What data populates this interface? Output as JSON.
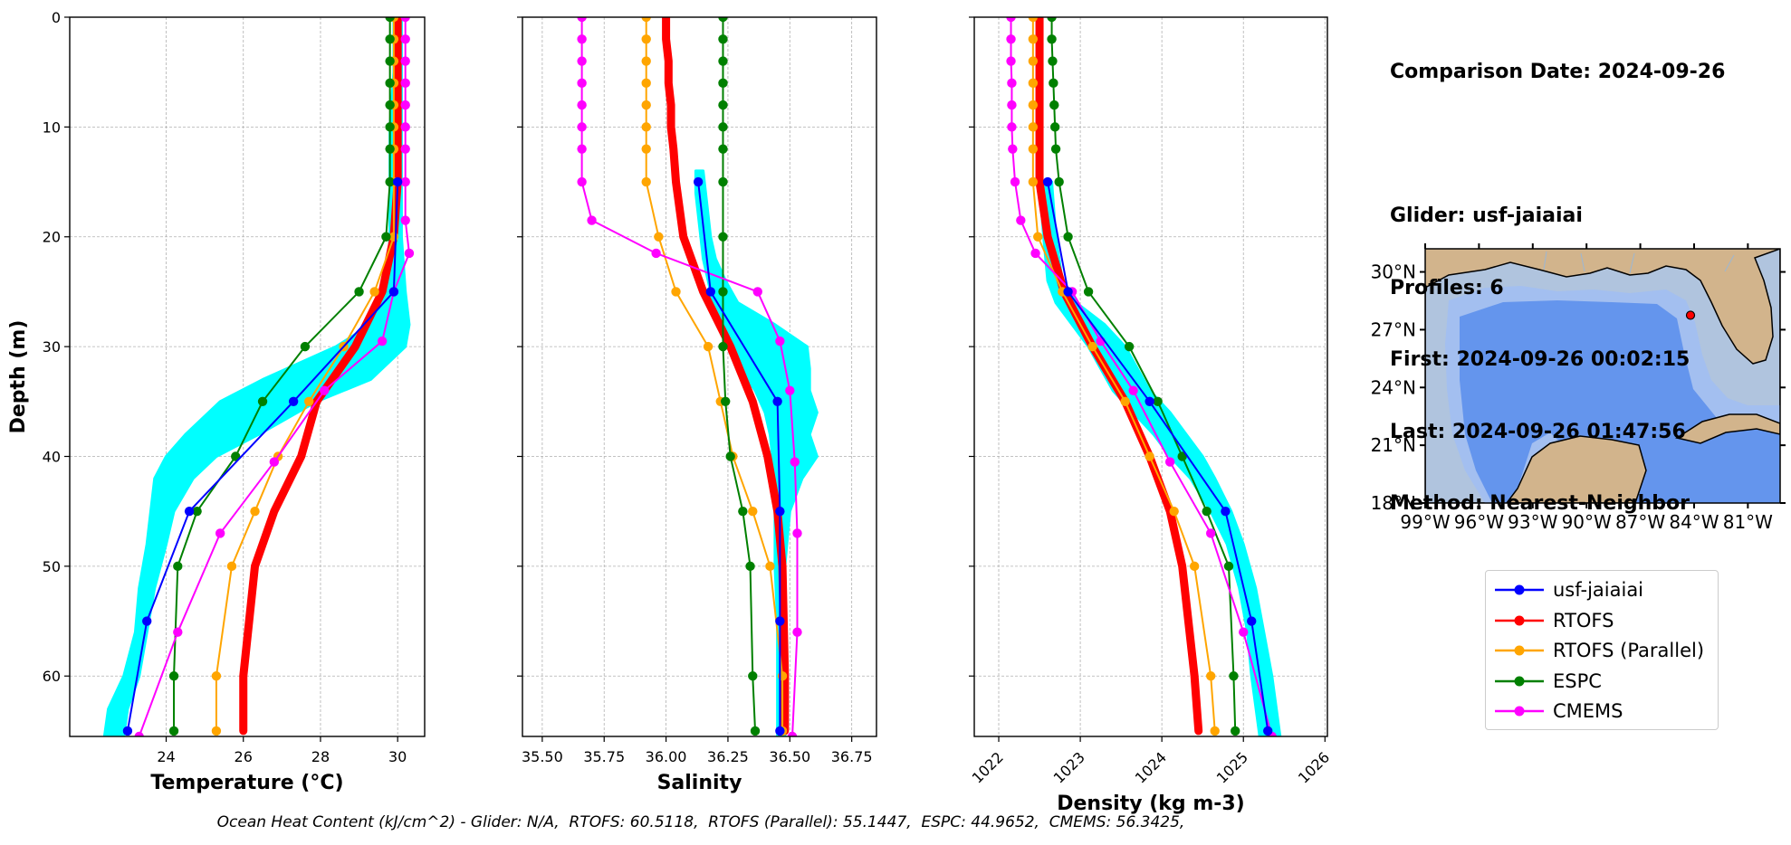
{
  "info": {
    "comparison": "Comparison Date: 2024-09-26",
    "glider": "Glider: usf-jaiaiai",
    "profiles": "Profiles: 6",
    "first": "First: 2024-09-26 00:02:15",
    "last": "Last: 2024-09-26 01:47:56",
    "method": "Method: Nearest-Neighbor"
  },
  "footer": "Ocean Heat Content (kJ/cm^2) - Glider: N/A,  RTOFS: 60.5118,  RTOFS (Parallel): 55.1447,  ESPC: 44.9652,  CMEMS: 56.3425,",
  "colors": {
    "glider": "#0000ff",
    "rtofs": "#ff0000",
    "parallel": "#ffa500",
    "espc": "#008000",
    "cmems": "#ff00ff",
    "raw": "#00ffff",
    "land": "#d2b48c",
    "shelf": "#b0c4de",
    "slope": "#a3bff0",
    "deep": "#6495ed"
  },
  "legend": [
    {
      "key": "glider",
      "label": "usf-jaiaiai"
    },
    {
      "key": "rtofs",
      "label": "RTOFS"
    },
    {
      "key": "parallel",
      "label": "RTOFS (Parallel)"
    },
    {
      "key": "espc",
      "label": "ESPC"
    },
    {
      "key": "cmems",
      "label": "CMEMS"
    }
  ],
  "chart_data": [
    {
      "type": "line",
      "xlabel": "Temperature (°C)",
      "ylabel": "Depth (m)",
      "xlim": [
        21.5,
        30.7
      ],
      "ylim": [
        65.5,
        0
      ],
      "xticks": [
        24,
        26,
        28,
        30
      ],
      "yticks": [
        0,
        10,
        20,
        30,
        40,
        50,
        60
      ],
      "grid": true,
      "series": [
        {
          "name": "usf-jaiaiai",
          "key": "glider",
          "depth": [
            15,
            25,
            35,
            45,
            55,
            65
          ],
          "values": [
            30.0,
            29.9,
            27.3,
            24.6,
            23.5,
            23.0
          ]
        },
        {
          "name": "RTOFS",
          "key": "rtofs",
          "depth": [
            0,
            2,
            4,
            6,
            8,
            10,
            12,
            15,
            20,
            25,
            30,
            35,
            40,
            45,
            50,
            60,
            65
          ],
          "values": [
            30.0,
            30.0,
            30.0,
            30.0,
            30.0,
            30.0,
            30.0,
            30.0,
            29.9,
            29.6,
            28.9,
            27.9,
            27.5,
            26.8,
            26.3,
            26.0,
            26.0
          ]
        },
        {
          "name": "RTOFS (Parallel)",
          "key": "parallel",
          "depth": [
            0,
            2,
            4,
            6,
            8,
            10,
            12,
            15,
            20,
            25,
            30,
            35,
            40,
            45,
            50,
            60,
            65
          ],
          "values": [
            29.9,
            29.9,
            29.9,
            29.9,
            29.9,
            29.9,
            29.9,
            29.9,
            29.9,
            29.4,
            28.6,
            27.7,
            26.9,
            26.3,
            25.7,
            25.3,
            25.3
          ]
        },
        {
          "name": "ESPC",
          "key": "espc",
          "depth": [
            0,
            2,
            4,
            6,
            8,
            10,
            12,
            15,
            20,
            25,
            30,
            35,
            40,
            45,
            50,
            60,
            65
          ],
          "values": [
            29.8,
            29.8,
            29.8,
            29.8,
            29.8,
            29.8,
            29.8,
            29.8,
            29.7,
            29.0,
            27.6,
            26.5,
            25.8,
            24.8,
            24.3,
            24.2,
            24.2
          ]
        },
        {
          "name": "CMEMS",
          "key": "cmems",
          "depth": [
            0,
            2,
            4,
            6,
            8,
            10,
            12,
            15,
            18.5,
            21.5,
            25,
            29.5,
            34,
            40.5,
            47,
            56,
            65.5
          ],
          "values": [
            30.2,
            30.2,
            30.2,
            30.2,
            30.2,
            30.2,
            30.2,
            30.2,
            30.2,
            30.3,
            29.9,
            29.6,
            28.1,
            26.8,
            25.4,
            24.3,
            23.3
          ]
        },
        {
          "name": "glider raw",
          "key": "raw",
          "style": "band",
          "depth": [
            0,
            5,
            10,
            15,
            20,
            25,
            28,
            30,
            33,
            35,
            38,
            40,
            42,
            45,
            48,
            52,
            56,
            60,
            63,
            65.5
          ],
          "low": [
            29.9,
            29.9,
            29.8,
            29.8,
            29.8,
            29.7,
            29.3,
            28.4,
            26.5,
            25.4,
            24.5,
            24.0,
            23.7,
            23.6,
            23.5,
            23.3,
            23.2,
            22.9,
            22.5,
            22.4
          ],
          "high": [
            30.1,
            30.1,
            30.1,
            30.1,
            30.1,
            30.2,
            30.3,
            30.2,
            29.3,
            27.9,
            26.4,
            25.3,
            24.7,
            24.2,
            24.0,
            23.7,
            23.5,
            23.3,
            23.0,
            22.9
          ]
        }
      ]
    },
    {
      "type": "line",
      "xlabel": "Salinity",
      "ylabel": "",
      "xlim": [
        35.42,
        36.85
      ],
      "ylim": [
        65.5,
        0
      ],
      "xticks": [
        35.5,
        35.75,
        36.0,
        36.25,
        36.5,
        36.75
      ],
      "yticks": [
        0,
        10,
        20,
        30,
        40,
        50,
        60
      ],
      "grid": true,
      "series": [
        {
          "name": "usf-jaiaiai",
          "key": "glider",
          "depth": [
            15,
            25,
            35,
            45,
            55,
            65
          ],
          "values": [
            36.13,
            36.18,
            36.45,
            36.46,
            36.46,
            36.46
          ]
        },
        {
          "name": "RTOFS",
          "key": "rtofs",
          "depth": [
            0,
            2,
            4,
            6,
            8,
            10,
            12,
            15,
            20,
            25,
            30,
            35,
            40,
            45,
            50,
            60,
            65
          ],
          "values": [
            36.0,
            36.0,
            36.01,
            36.01,
            36.02,
            36.02,
            36.03,
            36.04,
            36.07,
            36.15,
            36.26,
            36.35,
            36.41,
            36.45,
            36.47,
            36.48,
            36.48
          ]
        },
        {
          "name": "RTOFS (Parallel)",
          "key": "parallel",
          "depth": [
            0,
            2,
            4,
            6,
            8,
            10,
            12,
            15,
            20,
            25,
            30,
            35,
            40,
            45,
            50,
            60,
            65
          ],
          "values": [
            35.92,
            35.92,
            35.92,
            35.92,
            35.92,
            35.92,
            35.92,
            35.92,
            35.97,
            36.04,
            36.17,
            36.22,
            36.27,
            36.35,
            36.42,
            36.47,
            36.47
          ]
        },
        {
          "name": "ESPC",
          "key": "espc",
          "depth": [
            0,
            2,
            4,
            6,
            8,
            10,
            12,
            15,
            20,
            25,
            30,
            35,
            40,
            45,
            50,
            60,
            65
          ],
          "values": [
            36.23,
            36.23,
            36.23,
            36.23,
            36.23,
            36.23,
            36.23,
            36.23,
            36.23,
            36.23,
            36.23,
            36.24,
            36.26,
            36.31,
            36.34,
            36.35,
            36.36
          ]
        },
        {
          "name": "CMEMS",
          "key": "cmems",
          "depth": [
            0,
            2,
            4,
            6,
            8,
            10,
            12,
            15,
            18.5,
            21.5,
            25,
            29.5,
            34,
            40.5,
            47,
            56,
            65.5
          ],
          "values": [
            35.66,
            35.66,
            35.66,
            35.66,
            35.66,
            35.66,
            35.66,
            35.66,
            35.7,
            35.96,
            36.37,
            36.46,
            36.5,
            36.52,
            36.53,
            36.53,
            36.51
          ]
        },
        {
          "name": "glider raw",
          "key": "raw",
          "style": "band",
          "depth": [
            14,
            16,
            18,
            20,
            22,
            24,
            26,
            28,
            30,
            32,
            34,
            36,
            38,
            40,
            42,
            45,
            50,
            55,
            60,
            65.5
          ],
          "low": [
            36.12,
            36.12,
            36.13,
            36.14,
            36.15,
            36.17,
            36.19,
            36.22,
            36.27,
            36.3,
            36.36,
            36.4,
            36.42,
            36.43,
            36.44,
            36.44,
            36.44,
            36.45,
            36.45,
            36.45
          ],
          "high": [
            36.15,
            36.16,
            36.17,
            36.18,
            36.2,
            36.24,
            36.29,
            36.44,
            36.57,
            36.58,
            36.58,
            36.61,
            36.58,
            36.61,
            36.55,
            36.5,
            36.48,
            36.48,
            36.48,
            36.48
          ]
        }
      ]
    },
    {
      "type": "line",
      "xlabel": "Density (kg m-3)",
      "ylabel": "",
      "xlim": [
        1021.7,
        1026.03
      ],
      "ylim": [
        65.5,
        0
      ],
      "xticks": [
        1022,
        1023,
        1024,
        1025,
        1026
      ],
      "yticks": [
        0,
        10,
        20,
        30,
        40,
        50,
        60
      ],
      "grid": true,
      "series": [
        {
          "name": "usf-jaiaiai",
          "key": "glider",
          "depth": [
            15,
            25,
            35,
            45,
            55,
            65
          ],
          "values": [
            1022.6,
            1022.85,
            1023.85,
            1024.78,
            1025.1,
            1025.3
          ]
        },
        {
          "name": "RTOFS",
          "key": "rtofs",
          "depth": [
            0,
            2,
            4,
            6,
            8,
            10,
            12,
            15,
            20,
            25,
            30,
            35,
            40,
            45,
            50,
            60,
            65
          ],
          "values": [
            1022.5,
            1022.5,
            1022.5,
            1022.5,
            1022.5,
            1022.5,
            1022.5,
            1022.5,
            1022.6,
            1022.8,
            1023.15,
            1023.55,
            1023.85,
            1024.1,
            1024.25,
            1024.4,
            1024.45
          ]
        },
        {
          "name": "RTOFS (Parallel)",
          "key": "parallel",
          "depth": [
            0,
            2,
            4,
            6,
            8,
            10,
            12,
            15,
            20,
            25,
            30,
            35,
            40,
            45,
            50,
            60,
            65
          ],
          "values": [
            1022.42,
            1022.42,
            1022.42,
            1022.42,
            1022.42,
            1022.42,
            1022.42,
            1022.42,
            1022.48,
            1022.78,
            1023.15,
            1023.55,
            1023.85,
            1024.15,
            1024.4,
            1024.6,
            1024.65
          ]
        },
        {
          "name": "ESPC",
          "key": "espc",
          "depth": [
            0,
            2,
            4,
            6,
            8,
            10,
            12,
            15,
            20,
            25,
            30,
            35,
            40,
            45,
            50,
            60,
            65
          ],
          "values": [
            1022.65,
            1022.65,
            1022.66,
            1022.67,
            1022.68,
            1022.69,
            1022.7,
            1022.74,
            1022.85,
            1023.1,
            1023.6,
            1023.95,
            1024.25,
            1024.55,
            1024.82,
            1024.88,
            1024.9
          ]
        },
        {
          "name": "CMEMS",
          "key": "cmems",
          "depth": [
            0,
            2,
            4,
            6,
            8,
            10,
            12,
            15,
            18.5,
            21.5,
            25,
            29.5,
            34,
            40.5,
            47,
            56,
            65.5
          ],
          "values": [
            1022.15,
            1022.15,
            1022.15,
            1022.16,
            1022.16,
            1022.16,
            1022.17,
            1022.2,
            1022.27,
            1022.45,
            1022.9,
            1023.25,
            1023.65,
            1024.1,
            1024.6,
            1025.0,
            1025.35
          ]
        },
        {
          "name": "glider raw",
          "key": "raw",
          "style": "band",
          "depth": [
            15,
            20,
            24,
            26,
            28,
            30,
            32,
            34,
            36,
            38,
            40,
            42,
            45,
            48,
            52,
            56,
            60,
            65.5
          ],
          "low": [
            1022.5,
            1022.55,
            1022.6,
            1022.7,
            1022.9,
            1023.1,
            1023.25,
            1023.4,
            1023.65,
            1023.9,
            1024.1,
            1024.35,
            1024.6,
            1024.8,
            1024.95,
            1025.05,
            1025.1,
            1025.2
          ],
          "high": [
            1022.65,
            1022.7,
            1022.78,
            1022.95,
            1023.3,
            1023.55,
            1023.7,
            1023.85,
            1024.1,
            1024.3,
            1024.5,
            1024.65,
            1024.85,
            1025.0,
            1025.15,
            1025.25,
            1025.35,
            1025.45
          ]
        }
      ]
    }
  ],
  "map": {
    "lon_ticks": [
      "99°W",
      "96°W",
      "93°W",
      "90°W",
      "87°W",
      "84°W",
      "81°W"
    ],
    "lat_ticks": [
      "30°N",
      "27°N",
      "24°N",
      "21°N",
      "18°N"
    ],
    "lon_range": [
      -99,
      -79.2
    ],
    "lat_range": [
      18,
      31.2
    ],
    "marker": {
      "lon": -84.2,
      "lat": 27.75
    }
  }
}
